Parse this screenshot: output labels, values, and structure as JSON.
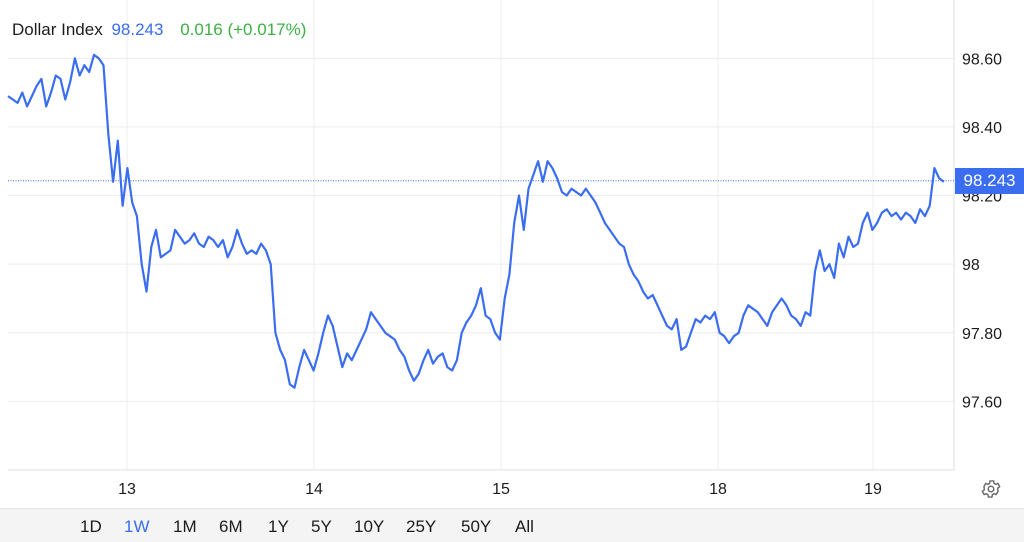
{
  "header": {
    "name": "Dollar Index",
    "value": "98.243",
    "change": "0.016",
    "change_pct": "(+0.017%)",
    "value_color": "#3a6df0",
    "change_color": "#3cb043"
  },
  "range_buttons": [
    {
      "label": "1D",
      "active": false
    },
    {
      "label": "1W",
      "active": true
    },
    {
      "label": "1M",
      "active": false
    },
    {
      "label": "6M",
      "active": false
    },
    {
      "label": "1Y",
      "active": false
    },
    {
      "label": "5Y",
      "active": false
    },
    {
      "label": "10Y",
      "active": false
    },
    {
      "label": "25Y",
      "active": false
    },
    {
      "label": "50Y",
      "active": false
    },
    {
      "label": "All",
      "active": false
    }
  ],
  "settings_icon": "gear-icon",
  "chart_data": {
    "type": "line",
    "title": "",
    "xlabel": "",
    "ylabel": "",
    "x_tick_labels": [
      "13",
      "14",
      "15",
      "18",
      "19"
    ],
    "y_tick_labels": [
      "98.60",
      "98.40",
      "98.20",
      "98",
      "97.80",
      "97.60"
    ],
    "ylim": [
      97.4,
      98.77
    ],
    "current_value": 98.243,
    "current_value_label": "98.243",
    "line_color": "#3a6df0",
    "grid": true,
    "series": [
      {
        "name": "",
        "values": [
          98.49,
          98.48,
          98.47,
          98.5,
          98.46,
          98.49,
          98.52,
          98.54,
          98.46,
          98.5,
          98.55,
          98.54,
          98.48,
          98.53,
          98.6,
          98.55,
          98.58,
          98.56,
          98.61,
          98.6,
          98.58,
          98.38,
          98.24,
          98.36,
          98.17,
          98.28,
          98.18,
          98.14,
          98.0,
          97.92,
          98.05,
          98.1,
          98.02,
          98.03,
          98.04,
          98.1,
          98.08,
          98.06,
          98.07,
          98.09,
          98.06,
          98.05,
          98.08,
          98.07,
          98.05,
          98.07,
          98.02,
          98.05,
          98.1,
          98.06,
          98.03,
          98.04,
          98.03,
          98.06,
          98.04,
          98.0,
          97.8,
          97.75,
          97.72,
          97.65,
          97.64,
          97.7,
          97.75,
          97.72,
          97.69,
          97.74,
          97.8,
          97.85,
          97.82,
          97.76,
          97.7,
          97.74,
          97.72,
          97.75,
          97.78,
          97.81,
          97.86,
          97.84,
          97.82,
          97.8,
          97.79,
          97.78,
          97.75,
          97.73,
          97.69,
          97.66,
          97.68,
          97.72,
          97.75,
          97.71,
          97.73,
          97.74,
          97.7,
          97.69,
          97.72,
          97.8,
          97.83,
          97.85,
          97.88,
          97.93,
          97.85,
          97.84,
          97.8,
          97.78,
          97.9,
          97.97,
          98.12,
          98.2,
          98.1,
          98.22,
          98.26,
          98.3,
          98.24,
          98.3,
          98.28,
          98.25,
          98.21,
          98.2,
          98.22,
          98.21,
          98.2,
          98.22,
          98.2,
          98.18,
          98.15,
          98.12,
          98.1,
          98.08,
          98.06,
          98.05,
          98.0,
          97.97,
          97.95,
          97.92,
          97.9,
          97.91,
          97.88,
          97.85,
          97.82,
          97.81,
          97.84,
          97.75,
          97.76,
          97.8,
          97.84,
          97.83,
          97.85,
          97.84,
          97.86,
          97.8,
          97.79,
          97.77,
          97.79,
          97.8,
          97.85,
          97.88,
          97.87,
          97.86,
          97.84,
          97.82,
          97.86,
          97.88,
          97.9,
          97.88,
          97.85,
          97.84,
          97.82,
          97.86,
          97.85,
          97.98,
          98.04,
          97.98,
          98.0,
          97.96,
          98.06,
          98.02,
          98.08,
          98.05,
          98.06,
          98.12,
          98.15,
          98.1,
          98.12,
          98.15,
          98.16,
          98.14,
          98.15,
          98.13,
          98.15,
          98.14,
          98.12,
          98.16,
          98.14,
          98.17,
          98.28,
          98.25,
          98.24
        ]
      }
    ]
  }
}
